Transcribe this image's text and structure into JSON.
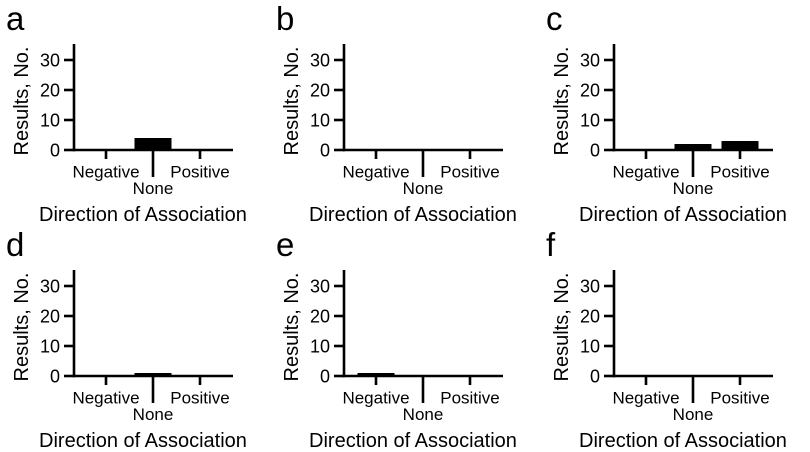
{
  "figure": {
    "background_color": "#ffffff",
    "ink_color": "#000000",
    "panel_letters": [
      "a",
      "b",
      "c",
      "d",
      "e",
      "f"
    ],
    "shared_ylabel": "Results, No.",
    "shared_xlabel": "Direction of Association"
  },
  "chart_data": [
    {
      "type": "bar",
      "panel": "a",
      "categories": [
        "Negative",
        "None",
        "Positive"
      ],
      "values": [
        0,
        4,
        0
      ],
      "xlabel": "Direction of Association",
      "ylabel": "Results, No.",
      "yticks": [
        0,
        10,
        20,
        30
      ],
      "ylim": [
        0,
        33
      ],
      "grid": false,
      "bar_color": "#000000",
      "axis_color": "#000000"
    },
    {
      "type": "bar",
      "panel": "b",
      "categories": [
        "Negative",
        "None",
        "Positive"
      ],
      "values": [
        0,
        0,
        0
      ],
      "xlabel": "Direction of Association",
      "ylabel": "Results, No.",
      "yticks": [
        0,
        10,
        20,
        30
      ],
      "ylim": [
        0,
        33
      ],
      "grid": false,
      "bar_color": "#000000",
      "axis_color": "#000000"
    },
    {
      "type": "bar",
      "panel": "c",
      "categories": [
        "Negative",
        "None",
        "Positive"
      ],
      "values": [
        0,
        2,
        3
      ],
      "xlabel": "Direction of Association",
      "ylabel": "Results, No.",
      "yticks": [
        0,
        10,
        20,
        30
      ],
      "ylim": [
        0,
        33
      ],
      "grid": false,
      "bar_color": "#000000",
      "axis_color": "#000000"
    },
    {
      "type": "bar",
      "panel": "d",
      "categories": [
        "Negative",
        "None",
        "Positive"
      ],
      "values": [
        0,
        1,
        0
      ],
      "xlabel": "Direction of Association",
      "ylabel": "Results, No.",
      "yticks": [
        0,
        10,
        20,
        30
      ],
      "ylim": [
        0,
        33
      ],
      "grid": false,
      "bar_color": "#000000",
      "axis_color": "#000000"
    },
    {
      "type": "bar",
      "panel": "e",
      "categories": [
        "Negative",
        "None",
        "Positive"
      ],
      "values": [
        1,
        0,
        0
      ],
      "xlabel": "Direction of Association",
      "ylabel": "Results, No.",
      "yticks": [
        0,
        10,
        20,
        30
      ],
      "ylim": [
        0,
        33
      ],
      "grid": false,
      "bar_color": "#000000",
      "axis_color": "#000000"
    },
    {
      "type": "bar",
      "panel": "f",
      "categories": [
        "Negative",
        "None",
        "Positive"
      ],
      "values": [
        0,
        0,
        0
      ],
      "xlabel": "Direction of Association",
      "ylabel": "Results, No.",
      "yticks": [
        0,
        10,
        20,
        30
      ],
      "ylim": [
        0,
        33
      ],
      "grid": false,
      "bar_color": "#000000",
      "axis_color": "#000000"
    }
  ]
}
